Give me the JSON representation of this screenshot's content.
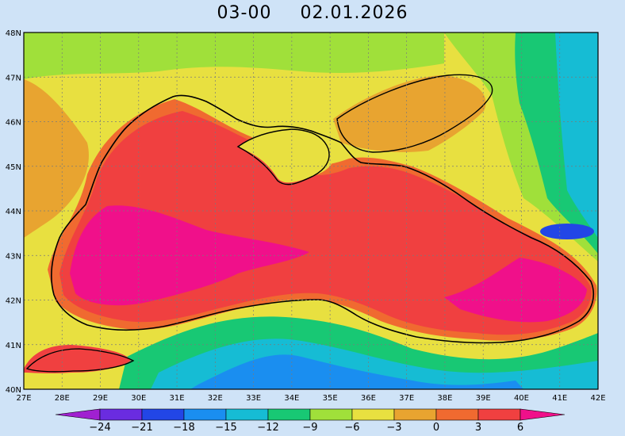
{
  "header": {
    "time": "03-00",
    "date": "02.01.2026"
  },
  "axes": {
    "lat_labels": [
      "48N",
      "47N",
      "46N",
      "45N",
      "44N",
      "43N",
      "42N",
      "41N",
      "40N"
    ],
    "lon_labels": [
      "27E",
      "28E",
      "29E",
      "30E",
      "31E",
      "32E",
      "33E",
      "34E",
      "35E",
      "36E",
      "37E",
      "38E",
      "39E",
      "40E",
      "41E",
      "42E"
    ]
  },
  "colorbar": {
    "ticks": [
      "-24",
      "-21",
      "-18",
      "-15",
      "-12",
      "-9",
      "-6",
      "-3",
      "0",
      "3",
      "6"
    ],
    "colors": [
      "#a020d0",
      "#6a2ce0",
      "#2246e6",
      "#1a8ef0",
      "#16bcd4",
      "#18c874",
      "#a0e03a",
      "#e8e040",
      "#e8a430",
      "#f06a30",
      "#f04040",
      "#f0108a"
    ]
  },
  "legend_colors": {
    "land_cold": "#1a8ef0",
    "land_cool": "#18c874",
    "land_mild": "#a0e03a",
    "land_neutral": "#e8e040",
    "land_warm": "#e8a430",
    "sea_warm": "#f06a30",
    "sea_hot": "#f04040",
    "sea_core": "#f0108a",
    "coast": "#000000"
  }
}
